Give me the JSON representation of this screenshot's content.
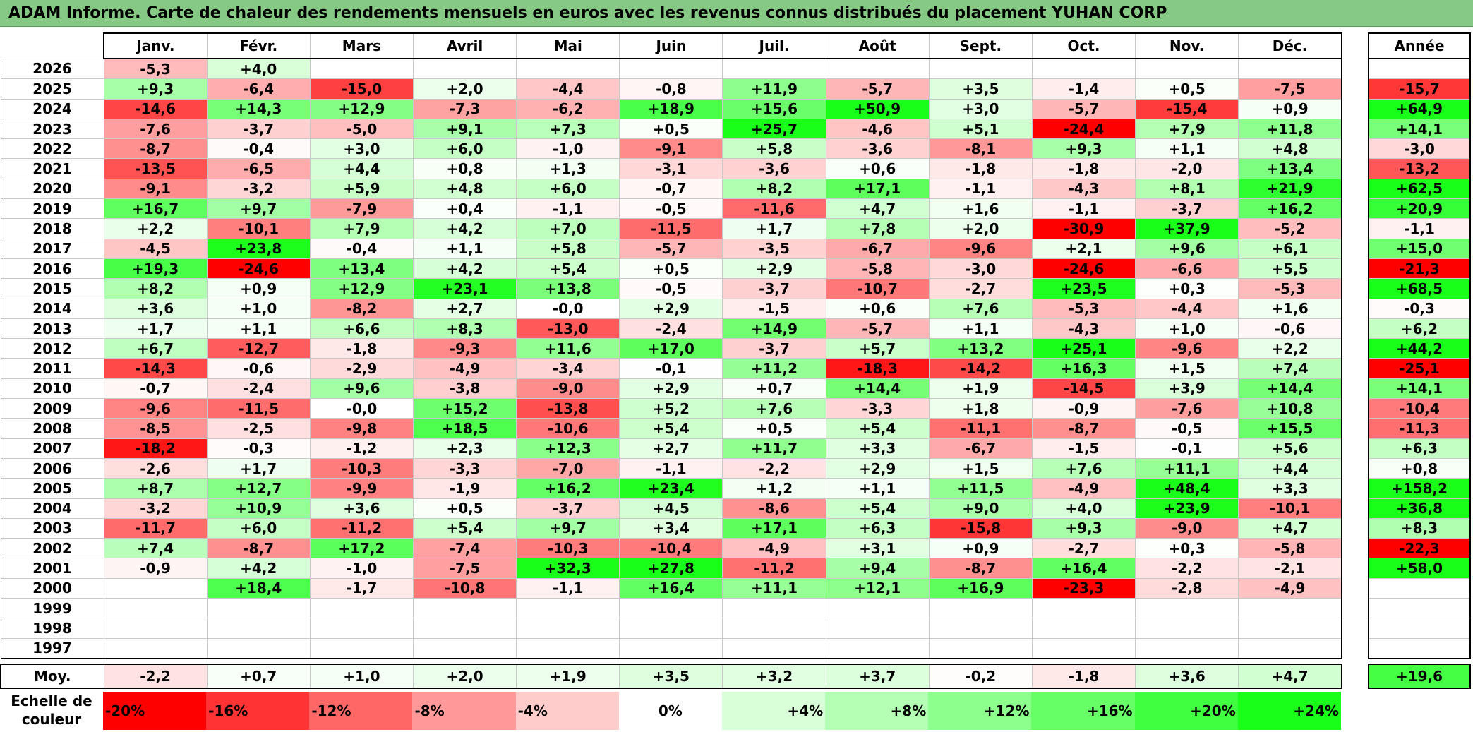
{
  "title": "ADAM Informe. Carte de chaleur des rendements mensuels en euros avec les revenus connus distribués du placement YUHAN CORP",
  "chart_data": {
    "type": "heatmap",
    "title": "ADAM Informe. Carte de chaleur des rendements mensuels en euros avec les revenus connus distribués du placement YUHAN CORP",
    "months": [
      "Janv.",
      "Févr.",
      "Mars",
      "Avril",
      "Mai",
      "Juin",
      "Juil.",
      "Août",
      "Sept.",
      "Oct.",
      "Nov.",
      "Déc."
    ],
    "annual_header": "Année",
    "rows": [
      {
        "year": "2026",
        "values": [
          "-5,3",
          "+4,0",
          "",
          "",
          "",
          "",
          "",
          "",
          "",
          "",
          "",
          ""
        ],
        "annual": ""
      },
      {
        "year": "2025",
        "values": [
          "+9,3",
          "-6,4",
          "-15,0",
          "+2,0",
          "-4,4",
          "-0,8",
          "+11,9",
          "-5,7",
          "+3,5",
          "-1,4",
          "+0,5",
          "-7,5"
        ],
        "annual": "-15,7"
      },
      {
        "year": "2024",
        "values": [
          "-14,6",
          "+14,3",
          "+12,9",
          "-7,3",
          "-6,2",
          "+18,9",
          "+15,6",
          "+50,9",
          "+3,0",
          "-5,7",
          "-15,4",
          "+0,9"
        ],
        "annual": "+64,9"
      },
      {
        "year": "2023",
        "values": [
          "-7,6",
          "-3,7",
          "-5,0",
          "+9,1",
          "+7,3",
          "+0,5",
          "+25,7",
          "-4,6",
          "+5,1",
          "-24,4",
          "+7,9",
          "+11,8"
        ],
        "annual": "+14,1"
      },
      {
        "year": "2022",
        "values": [
          "-8,7",
          "-0,4",
          "+3,0",
          "+6,0",
          "-1,0",
          "-9,1",
          "+5,8",
          "-3,6",
          "-8,1",
          "+9,3",
          "+1,1",
          "+4,8"
        ],
        "annual": "-3,0"
      },
      {
        "year": "2021",
        "values": [
          "-13,5",
          "-6,5",
          "+4,4",
          "+0,8",
          "+1,3",
          "-3,1",
          "-3,6",
          "+0,6",
          "-1,8",
          "-1,8",
          "-2,0",
          "+13,4"
        ],
        "annual": "-13,2"
      },
      {
        "year": "2020",
        "values": [
          "-9,1",
          "-3,2",
          "+5,9",
          "+4,8",
          "+6,0",
          "-0,7",
          "+8,2",
          "+17,1",
          "-1,1",
          "-4,3",
          "+8,1",
          "+21,9"
        ],
        "annual": "+62,5"
      },
      {
        "year": "2019",
        "values": [
          "+16,7",
          "+9,7",
          "-7,9",
          "+0,4",
          "-1,1",
          "-0,5",
          "-11,6",
          "+4,7",
          "+1,6",
          "-1,1",
          "-3,7",
          "+16,2"
        ],
        "annual": "+20,9"
      },
      {
        "year": "2018",
        "values": [
          "+2,2",
          "-10,1",
          "+7,9",
          "+4,2",
          "+7,0",
          "-11,5",
          "+1,7",
          "+7,8",
          "+2,0",
          "-30,9",
          "+37,9",
          "-5,2"
        ],
        "annual": "-1,1"
      },
      {
        "year": "2017",
        "values": [
          "-4,5",
          "+23,8",
          "-0,4",
          "+1,1",
          "+5,8",
          "-5,7",
          "-3,5",
          "-6,7",
          "-9,6",
          "+2,1",
          "+9,6",
          "+6,1"
        ],
        "annual": "+15,0"
      },
      {
        "year": "2016",
        "values": [
          "+19,3",
          "-24,6",
          "+13,4",
          "+4,2",
          "+5,4",
          "+0,5",
          "+2,9",
          "-5,8",
          "-3,0",
          "-24,6",
          "-6,6",
          "+5,5"
        ],
        "annual": "-21,3"
      },
      {
        "year": "2015",
        "values": [
          "+8,2",
          "+0,9",
          "+12,9",
          "+23,1",
          "+13,8",
          "-0,5",
          "-3,7",
          "-10,7",
          "-2,7",
          "+23,5",
          "+0,3",
          "-5,3"
        ],
        "annual": "+68,5"
      },
      {
        "year": "2014",
        "values": [
          "+3,6",
          "+1,0",
          "-8,2",
          "+2,7",
          "-0,0",
          "+2,9",
          "-1,5",
          "+0,6",
          "+7,6",
          "-5,3",
          "-4,4",
          "+1,6"
        ],
        "annual": "-0,3"
      },
      {
        "year": "2013",
        "values": [
          "+1,7",
          "+1,1",
          "+6,6",
          "+8,3",
          "-13,0",
          "-2,4",
          "+14,9",
          "-5,7",
          "+1,1",
          "-4,3",
          "+1,0",
          "-0,6"
        ],
        "annual": "+6,2"
      },
      {
        "year": "2012",
        "values": [
          "+6,7",
          "-12,7",
          "-1,8",
          "-9,3",
          "+11,6",
          "+17,0",
          "-3,7",
          "+5,7",
          "+13,2",
          "+25,1",
          "-9,6",
          "+2,2"
        ],
        "annual": "+44,2"
      },
      {
        "year": "2011",
        "values": [
          "-14,3",
          "-0,6",
          "-2,9",
          "-4,9",
          "-3,4",
          "-0,1",
          "+11,2",
          "-18,3",
          "-14,2",
          "+16,3",
          "+1,5",
          "+7,4"
        ],
        "annual": "-25,1"
      },
      {
        "year": "2010",
        "values": [
          "-0,7",
          "-2,4",
          "+9,6",
          "-3,8",
          "-9,0",
          "+2,9",
          "+0,7",
          "+14,4",
          "+1,9",
          "-14,5",
          "+3,9",
          "+14,4"
        ],
        "annual": "+14,1"
      },
      {
        "year": "2009",
        "values": [
          "-9,6",
          "-11,5",
          "-0,0",
          "+15,2",
          "-13,8",
          "+5,2",
          "+7,6",
          "-3,3",
          "+1,8",
          "-0,9",
          "-7,6",
          "+10,8"
        ],
        "annual": "-10,4"
      },
      {
        "year": "2008",
        "values": [
          "-8,5",
          "-2,5",
          "-9,8",
          "+18,5",
          "-10,6",
          "+5,4",
          "+0,5",
          "+5,4",
          "-11,1",
          "-8,7",
          "-0,5",
          "+15,5"
        ],
        "annual": "-11,3"
      },
      {
        "year": "2007",
        "values": [
          "-18,2",
          "-0,3",
          "-1,2",
          "+2,3",
          "+12,3",
          "+2,7",
          "+11,7",
          "+3,3",
          "-6,7",
          "-1,5",
          "-0,1",
          "+5,6"
        ],
        "annual": "+6,3"
      },
      {
        "year": "2006",
        "values": [
          "-2,6",
          "+1,7",
          "-10,3",
          "-3,3",
          "-7,0",
          "-1,1",
          "-2,2",
          "+2,9",
          "+1,5",
          "+7,6",
          "+11,1",
          "+4,4"
        ],
        "annual": "+0,8"
      },
      {
        "year": "2005",
        "values": [
          "+8,7",
          "+12,7",
          "-9,9",
          "-1,9",
          "+16,2",
          "+23,4",
          "+1,2",
          "+1,1",
          "+11,5",
          "-4,9",
          "+48,4",
          "+3,3"
        ],
        "annual": "+158,2"
      },
      {
        "year": "2004",
        "values": [
          "-3,2",
          "+10,9",
          "+3,6",
          "+0,5",
          "-3,7",
          "+4,5",
          "-8,6",
          "+5,4",
          "+9,0",
          "+4,0",
          "+23,9",
          "-10,1"
        ],
        "annual": "+36,8"
      },
      {
        "year": "2003",
        "values": [
          "-11,7",
          "+6,0",
          "-11,2",
          "+5,4",
          "+9,7",
          "+3,4",
          "+17,1",
          "+6,3",
          "-15,8",
          "+9,3",
          "-9,0",
          "+4,7"
        ],
        "annual": "+8,3"
      },
      {
        "year": "2002",
        "values": [
          "+7,4",
          "-8,7",
          "+17,2",
          "-7,4",
          "-10,3",
          "-10,4",
          "-4,9",
          "+3,1",
          "+0,9",
          "-2,7",
          "+0,3",
          "-5,8"
        ],
        "annual": "-22,3"
      },
      {
        "year": "2001",
        "values": [
          "-0,9",
          "+4,2",
          "-1,0",
          "-7,5",
          "+32,3",
          "+27,8",
          "-11,2",
          "+9,4",
          "-8,7",
          "+16,4",
          "-2,2",
          "-2,1"
        ],
        "annual": "+58,0"
      },
      {
        "year": "2000",
        "values": [
          "",
          "+18,4",
          "-1,7",
          "-10,8",
          "-1,1",
          "+16,4",
          "+11,1",
          "+12,1",
          "+16,9",
          "-23,3",
          "-2,8",
          "-4,9"
        ],
        "annual": ""
      },
      {
        "year": "1999",
        "values": [
          "",
          "",
          "",
          "",
          "",
          "",
          "",
          "",
          "",
          "",
          "",
          ""
        ],
        "annual": ""
      },
      {
        "year": "1998",
        "values": [
          "",
          "",
          "",
          "",
          "",
          "",
          "",
          "",
          "",
          "",
          "",
          ""
        ],
        "annual": ""
      },
      {
        "year": "1997",
        "values": [
          "",
          "",
          "",
          "",
          "",
          "",
          "",
          "",
          "",
          "",
          "",
          ""
        ],
        "annual": ""
      }
    ],
    "average": {
      "label": "Moy.",
      "values": [
        "-2,2",
        "+0,7",
        "+1,0",
        "+2,0",
        "+1,9",
        "+3,5",
        "+3,2",
        "+3,7",
        "-0,2",
        "-1,8",
        "+3,6",
        "+4,7"
      ],
      "annual": "+19,6"
    },
    "scale": {
      "label_line1": "Echelle de",
      "label_line2": "couleur",
      "stops": [
        {
          "label": "-20%",
          "value": -20,
          "color": "#ff0000"
        },
        {
          "label": "-16%",
          "value": -16,
          "color": "#ff3333"
        },
        {
          "label": "-12%",
          "value": -12,
          "color": "#ff6666"
        },
        {
          "label": "-8%",
          "value": -8,
          "color": "#ff9999"
        },
        {
          "label": "-4%",
          "value": -4,
          "color": "#ffcccc"
        },
        {
          "label": "0%",
          "value": 0,
          "color": "#ffffff"
        },
        {
          "label": "+4%",
          "value": 4,
          "color": "#d9ffd9"
        },
        {
          "label": "+8%",
          "value": 8,
          "color": "#b3ffb3"
        },
        {
          "label": "+12%",
          "value": 12,
          "color": "#8dff8d"
        },
        {
          "label": "+16%",
          "value": 16,
          "color": "#66ff66"
        },
        {
          "label": "+20%",
          "value": 20,
          "color": "#40ff40"
        },
        {
          "label": "+24%",
          "value": 24,
          "color": "#1aff1a"
        }
      ]
    }
  },
  "colors": {
    "title_bg": "#85c985",
    "negative_max": "#ff0000",
    "positive_max": "#00ff00"
  }
}
